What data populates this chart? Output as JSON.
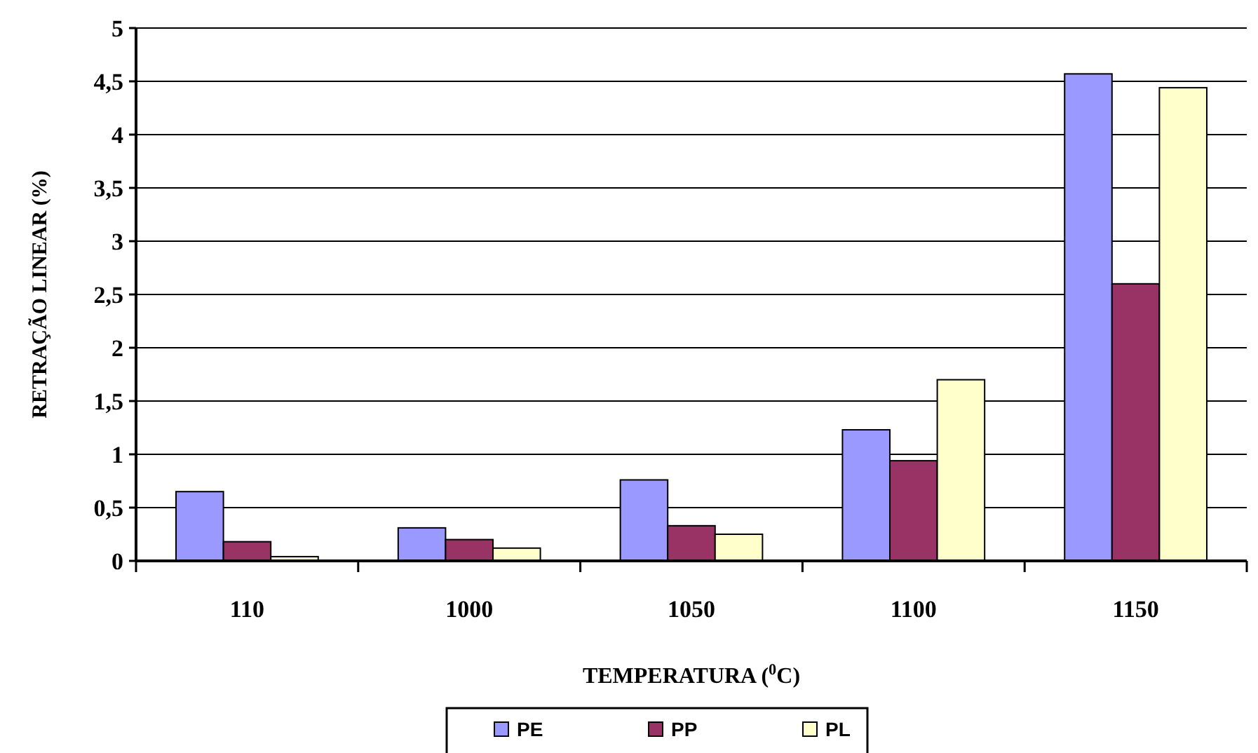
{
  "chart_data": {
    "type": "bar",
    "xlabel": "TEMPERATURA ($^{0}$C)",
    "ylabel": "RETRAÇÃO LINEAR (%)",
    "categories": [
      "110",
      "1000",
      "1050",
      "1100",
      "1150"
    ],
    "series": [
      {
        "name": "PE",
        "color": "#9999ff",
        "values": [
          0.65,
          0.31,
          0.76,
          1.23,
          4.57
        ]
      },
      {
        "name": "PP",
        "color": "#993366",
        "values": [
          0.18,
          0.2,
          0.33,
          0.94,
          2.6
        ]
      },
      {
        "name": "PL",
        "color": "#ffffcc",
        "values": [
          0.04,
          0.12,
          0.25,
          1.7,
          4.44
        ]
      }
    ],
    "ylim": [
      0,
      5
    ],
    "yticks": [
      0,
      {
        "value": 0.5,
        "label": "0,5"
      },
      1,
      {
        "value": 1.5,
        "label": "1,5"
      },
      2,
      {
        "value": 2.5,
        "label": "2,5"
      },
      3,
      {
        "value": 3.5,
        "label": "3,5"
      },
      4,
      {
        "value": 4.5,
        "label": "4,5"
      },
      5
    ],
    "grid": "y",
    "legend": "bottom"
  }
}
